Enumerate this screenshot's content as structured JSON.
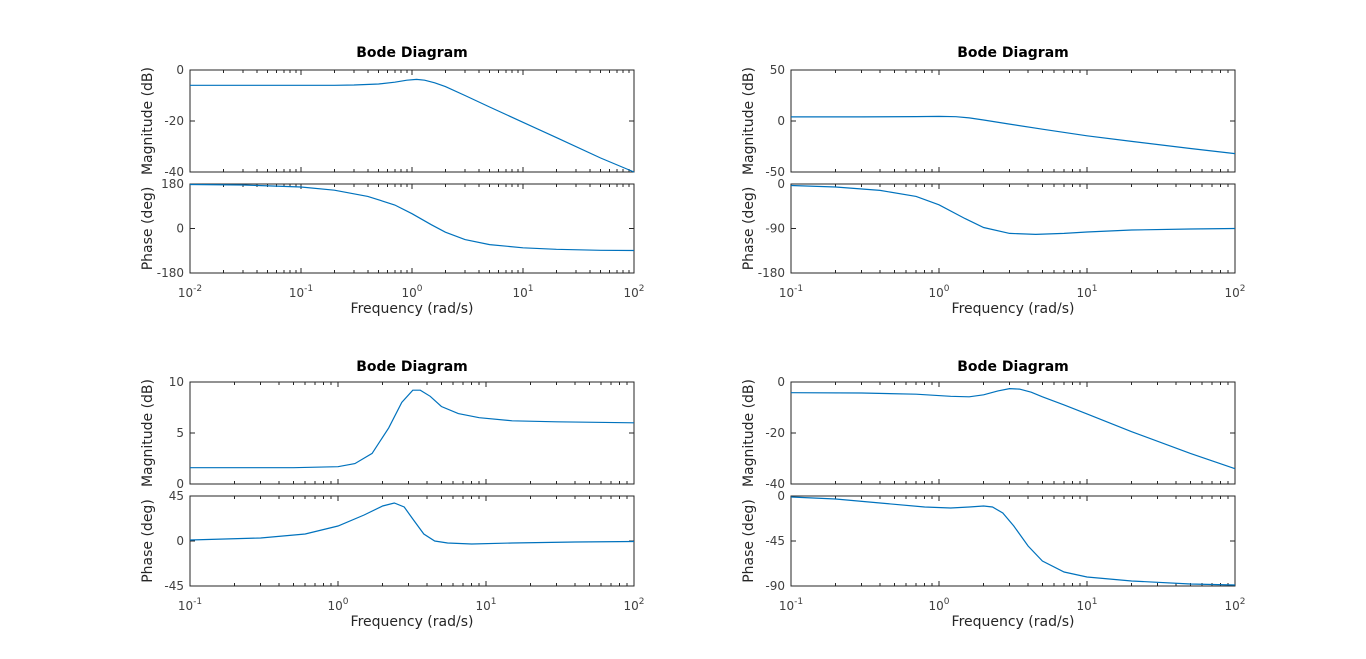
{
  "chart_data": [
    {
      "type": "line",
      "title": "Bode Diagram",
      "xlabel": "Frequency  (rad/s)",
      "xscale": "log",
      "x_ticks": [
        "-2",
        "-1",
        "0",
        "1",
        "2"
      ],
      "xlim": [
        0.01,
        100
      ],
      "grid": false,
      "magnitude": {
        "ylabel": "Magnitude (dB)",
        "ylim": [
          -40,
          0
        ],
        "y_ticks": [
          "0",
          "-20",
          "-40"
        ],
        "x": [
          0.01,
          0.05,
          0.1,
          0.2,
          0.3,
          0.5,
          0.7,
          0.9,
          1.1,
          1.3,
          1.6,
          2.0,
          3.0,
          5.0,
          10,
          20,
          50,
          100
        ],
        "y": [
          -6.0,
          -6.0,
          -6.0,
          -6.0,
          -5.9,
          -5.5,
          -4.8,
          -4.0,
          -3.7,
          -4.0,
          -5.0,
          -6.5,
          -10.0,
          -14.5,
          -20.5,
          -26.5,
          -34.5,
          -40.0
        ]
      },
      "phase": {
        "ylabel": "Phase (deg)",
        "ylim": [
          -180,
          180
        ],
        "y_ticks": [
          "180",
          "0",
          "-180"
        ],
        "x": [
          0.01,
          0.03,
          0.1,
          0.2,
          0.4,
          0.7,
          1.0,
          1.5,
          2.0,
          3.0,
          5.0,
          10,
          20,
          50,
          100
        ],
        "y": [
          178,
          176,
          168,
          155,
          130,
          95,
          60,
          15,
          -15,
          -45,
          -65,
          -78,
          -84,
          -88,
          -89
        ]
      }
    },
    {
      "type": "line",
      "title": "Bode Diagram",
      "xlabel": "Frequency  (rad/s)",
      "xscale": "log",
      "x_ticks": [
        "-1",
        "0",
        "1",
        "2"
      ],
      "xlim": [
        0.1,
        100
      ],
      "grid": false,
      "magnitude": {
        "ylabel": "Magnitude (dB)",
        "ylim": [
          -50,
          50
        ],
        "y_ticks": [
          "50",
          "0",
          "-50"
        ],
        "x": [
          0.1,
          0.3,
          0.7,
          1.0,
          1.3,
          1.6,
          2.0,
          3.0,
          5.0,
          10,
          20,
          50,
          100
        ],
        "y": [
          4.0,
          4.0,
          4.3,
          4.5,
          4.2,
          3.0,
          1.0,
          -3.0,
          -8.0,
          -14.5,
          -20.0,
          -27.0,
          -32.0
        ]
      },
      "phase": {
        "ylabel": "Phase (deg)",
        "ylim": [
          -180,
          0
        ],
        "y_ticks": [
          "0",
          "-90",
          "-180"
        ],
        "x": [
          0.1,
          0.2,
          0.4,
          0.7,
          1.0,
          1.5,
          2.0,
          3.0,
          4.5,
          7.0,
          10,
          20,
          50,
          100
        ],
        "y": [
          -3,
          -6,
          -13,
          -25,
          -42,
          -70,
          -88,
          -100,
          -102,
          -100,
          -97,
          -93,
          -91,
          -90
        ]
      }
    },
    {
      "type": "line",
      "title": "Bode Diagram",
      "xlabel": "Frequency  (rad/s)",
      "xscale": "log",
      "x_ticks": [
        "-1",
        "0",
        "1",
        "2"
      ],
      "xlim": [
        0.1,
        100
      ],
      "grid": false,
      "magnitude": {
        "ylabel": "Magnitude (dB)",
        "ylim": [
          0,
          10
        ],
        "y_ticks": [
          "10",
          "5",
          "0"
        ],
        "x": [
          0.1,
          0.5,
          1.0,
          1.3,
          1.7,
          2.2,
          2.7,
          3.2,
          3.6,
          4.2,
          5.0,
          6.5,
          9.0,
          15,
          30,
          100
        ],
        "y": [
          1.6,
          1.6,
          1.7,
          2.0,
          3.0,
          5.5,
          8.0,
          9.2,
          9.2,
          8.6,
          7.6,
          6.9,
          6.5,
          6.2,
          6.1,
          6.0
        ]
      },
      "phase": {
        "ylabel": "Phase (deg)",
        "ylim": [
          -45,
          45
        ],
        "y_ticks": [
          "45",
          "0",
          "-45"
        ],
        "x": [
          0.1,
          0.3,
          0.6,
          1.0,
          1.5,
          2.0,
          2.4,
          2.8,
          3.2,
          3.8,
          4.5,
          5.5,
          8.0,
          15,
          40,
          100
        ],
        "y": [
          1,
          3,
          7,
          15,
          26,
          35,
          38,
          34,
          22,
          7,
          0,
          -2,
          -3,
          -2,
          -1,
          -0.5
        ]
      }
    },
    {
      "type": "line",
      "title": "Bode Diagram",
      "xlabel": "Frequency  (rad/s)",
      "xscale": "log",
      "x_ticks": [
        "-1",
        "0",
        "1",
        "2"
      ],
      "xlim": [
        0.1,
        100
      ],
      "grid": false,
      "magnitude": {
        "ylabel": "Magnitude (dB)",
        "ylim": [
          -40,
          0
        ],
        "y_ticks": [
          "0",
          "-20",
          "-40"
        ],
        "x": [
          0.1,
          0.3,
          0.7,
          1.2,
          1.6,
          2.0,
          2.5,
          3.0,
          3.5,
          4.2,
          5.0,
          7.0,
          10,
          20,
          50,
          100
        ],
        "y": [
          -4.2,
          -4.3,
          -4.8,
          -5.6,
          -5.8,
          -5.0,
          -3.5,
          -2.6,
          -2.8,
          -4.0,
          -5.8,
          -9.0,
          -12.5,
          -19.5,
          -28.0,
          -34.0
        ]
      },
      "phase": {
        "ylabel": "Phase (deg)",
        "ylim": [
          -90,
          0
        ],
        "y_ticks": [
          "0",
          "-45",
          "-90"
        ],
        "x": [
          0.1,
          0.2,
          0.4,
          0.8,
          1.2,
          1.6,
          2.0,
          2.3,
          2.7,
          3.2,
          4.0,
          5.0,
          7.0,
          10,
          20,
          50,
          100
        ],
        "y": [
          -1,
          -3,
          -7,
          -11,
          -12,
          -11,
          -10,
          -11,
          -17,
          -30,
          -50,
          -65,
          -76,
          -81,
          -85,
          -88,
          -89
        ]
      }
    }
  ]
}
